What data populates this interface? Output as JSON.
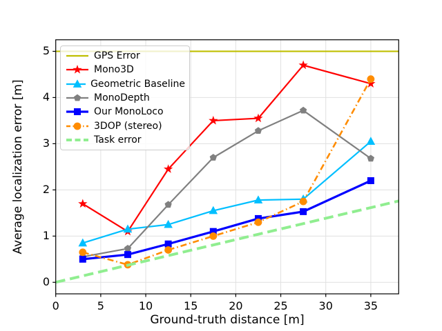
{
  "figure": {
    "xlabel": "Ground-truth distance [m]",
    "ylabel": "Average localization error [m]"
  },
  "chart_data": {
    "type": "line",
    "title": "",
    "xlabel": "Ground-truth distance [m]",
    "ylabel": "Average localization error [m]",
    "xlim": [
      0,
      38.1
    ],
    "ylim": [
      -0.25,
      5.25
    ],
    "xticks": [
      0,
      5,
      10,
      15,
      20,
      25,
      30,
      35
    ],
    "yticks": [
      0,
      1,
      2,
      3,
      4,
      5
    ],
    "grid": true,
    "grid_color": "#e0e0e0",
    "legend_position": "upper left",
    "x": [
      3,
      8,
      12.5,
      17.5,
      22.5,
      27.5,
      35
    ],
    "series": [
      {
        "name": "GPS Error",
        "type": "hline",
        "y": 5.0,
        "color": "#bfbf00",
        "linestyle": "solid",
        "linewidth": 2.2,
        "marker": "none"
      },
      {
        "name": "Mono3D",
        "type": "data",
        "color": "#ff0000",
        "linestyle": "solid",
        "linewidth": 2.2,
        "marker": "star",
        "values": [
          1.7,
          1.1,
          2.45,
          3.5,
          3.55,
          4.7,
          4.3
        ]
      },
      {
        "name": "Geometric Baseline",
        "type": "data",
        "color": "#00bfff",
        "linestyle": "solid",
        "linewidth": 2.2,
        "marker": "triangle",
        "values": [
          0.85,
          1.15,
          1.25,
          1.55,
          1.78,
          1.8,
          3.05
        ]
      },
      {
        "name": "MonoDepth",
        "type": "data",
        "color": "#808080",
        "linestyle": "solid",
        "linewidth": 2.2,
        "marker": "pentagon",
        "values": [
          0.55,
          0.73,
          1.68,
          2.7,
          3.28,
          3.72,
          2.68
        ]
      },
      {
        "name": "Our MonoLoco",
        "type": "data",
        "color": "#0000ff",
        "linestyle": "solid",
        "linewidth": 3.2,
        "marker": "square",
        "values": [
          0.5,
          0.6,
          0.83,
          1.1,
          1.38,
          1.53,
          2.2
        ]
      },
      {
        "name": "3DOP (stereo)",
        "type": "data",
        "color": "#ff8c00",
        "linestyle": "dashdot",
        "linewidth": 2.6,
        "marker": "circle",
        "values": [
          0.65,
          0.38,
          0.7,
          1.0,
          1.3,
          1.75,
          4.4
        ]
      },
      {
        "name": "Task error",
        "type": "xy",
        "color": "#90ee90",
        "linestyle": "dashed",
        "linewidth": 4,
        "marker": "none",
        "points": [
          [
            0,
            0
          ],
          [
            38.1,
            1.76
          ]
        ]
      }
    ]
  }
}
